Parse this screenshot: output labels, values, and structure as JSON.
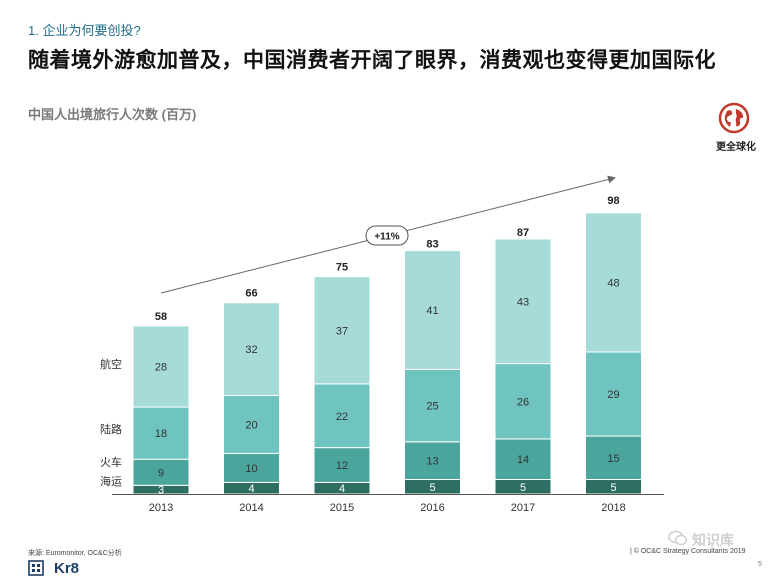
{
  "header": {
    "section": "1. 企业为何要创投?",
    "headline": "随着境外游愈加普及，中国消费者开阔了眼界，消费观也变得更加国际化"
  },
  "badge": {
    "label": "更全球化",
    "icon": "globe-icon",
    "color": "#c0392b"
  },
  "chart_data": {
    "type": "bar",
    "stacked": true,
    "title": "中国人出境旅行人次数 (百万)",
    "categories": [
      "2013",
      "2014",
      "2015",
      "2016",
      "2017",
      "2018"
    ],
    "series": [
      {
        "name": "海运",
        "values": [
          3,
          4,
          4,
          5,
          5,
          5
        ],
        "color": "#2e6e62"
      },
      {
        "name": "火车",
        "values": [
          9,
          10,
          12,
          13,
          14,
          15
        ],
        "color": "#4aa59c"
      },
      {
        "name": "陆路",
        "values": [
          18,
          20,
          22,
          25,
          26,
          29
        ],
        "color": "#6fc4c0"
      },
      {
        "name": "航空",
        "values": [
          28,
          32,
          37,
          41,
          43,
          48
        ],
        "color": "#a6dbd9"
      }
    ],
    "totals": [
      58,
      66,
      75,
      83,
      87,
      98
    ],
    "ylim": [
      0,
      98
    ],
    "annotation": "+11%",
    "grid": false
  },
  "footer": {
    "source": "来源: Euromonitor, OC&C分析",
    "copyright": "| © OC&C Strategy Consultants 2019",
    "page": "5",
    "logo": "Kr8",
    "watermark": "知识库"
  }
}
